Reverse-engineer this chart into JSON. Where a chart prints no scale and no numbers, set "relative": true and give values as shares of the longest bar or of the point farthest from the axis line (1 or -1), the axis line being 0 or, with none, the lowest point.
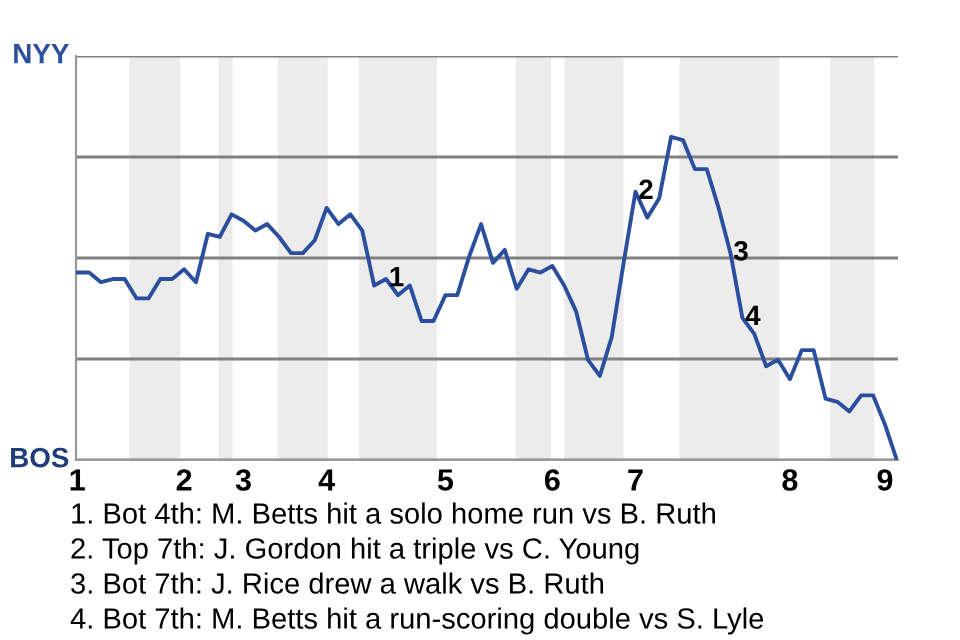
{
  "chart_data": {
    "type": "line",
    "relative": true,
    "categories": [
      "1",
      null,
      null,
      null,
      null,
      null,
      null,
      null,
      null,
      "2",
      null,
      null,
      null,
      null,
      "3",
      null,
      null,
      null,
      null,
      null,
      null,
      "4",
      null,
      null,
      null,
      null,
      null,
      null,
      null,
      null,
      null,
      "5",
      null,
      null,
      null,
      null,
      null,
      null,
      null,
      null,
      "6",
      null,
      null,
      null,
      null,
      null,
      null,
      "7",
      null,
      null,
      null,
      null,
      null,
      null,
      null,
      null,
      null,
      null,
      null,
      null,
      "8",
      null,
      null,
      null,
      null,
      null,
      null,
      null,
      "9",
      null
    ],
    "series": [
      {
        "color": "#2b4f9e",
        "values": [
          0.58,
          0.58,
          0.55,
          0.56,
          0.56,
          0.5,
          0.5,
          0.56,
          0.56,
          0.59,
          0.55,
          0.7,
          0.69,
          0.76,
          0.74,
          0.71,
          0.73,
          0.69,
          0.64,
          0.64,
          0.68,
          0.78,
          0.73,
          0.76,
          0.71,
          0.54,
          0.56,
          0.51,
          0.54,
          0.43,
          0.43,
          0.51,
          0.51,
          0.63,
          0.73,
          0.61,
          0.65,
          0.53,
          0.59,
          0.58,
          0.6,
          0.54,
          0.46,
          0.31,
          0.26,
          0.38,
          0.61,
          0.83,
          0.75,
          0.81,
          1.0,
          0.99,
          0.9,
          0.9,
          0.78,
          0.64,
          0.44,
          0.39,
          0.29,
          0.31,
          0.25,
          0.34,
          0.34,
          0.19,
          0.18,
          0.15,
          0.2,
          0.2,
          0.11,
          0.0
        ]
      }
    ],
    "grid": "y",
    "tick_labels": "x",
    "line_style": "solid",
    "annotations": [
      "NYY",
      "BOS",
      {
        "text": "1",
        "y": 0.56
      },
      {
        "text": "2",
        "y": 0.83
      },
      {
        "text": "3",
        "y": 0.64
      },
      {
        "text": "4",
        "y": 0.44
      },
      "1. Bot 4th: M. Betts hit a solo home run vs B. Ruth",
      "2. Top 7th: J. Gordon hit a triple vs C. Young",
      "3. Bot 7th: J. Rice drew a walk vs B. Ruth",
      "4. Bot 7th: M. Betts hit a run-scoring double vs S. Lyle"
    ]
  }
}
